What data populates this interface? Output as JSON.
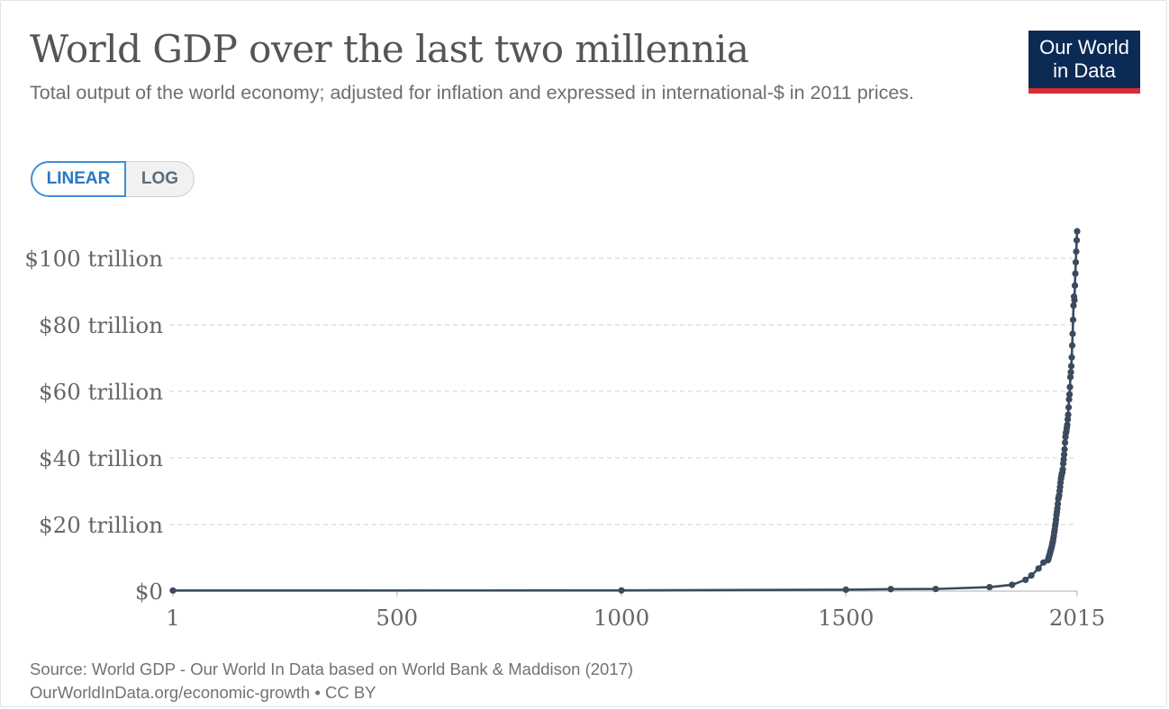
{
  "header": {
    "title": "World GDP over the last two millennia",
    "subtitle": "Total output of the world economy; adjusted for inflation and expressed in international-$ in 2011 prices.",
    "logo_line1": "Our World",
    "logo_line2": "in Data"
  },
  "controls": {
    "linear_label": "LINEAR",
    "log_label": "LOG",
    "selected": "LINEAR"
  },
  "footer": {
    "source": "Source: World GDP - Our World In Data based on World Bank & Maddison (2017)",
    "link": "OurWorldInData.org/economic-growth • CC BY"
  },
  "colors": {
    "line": "#3b4a5e",
    "grid": "#dadada",
    "logo_bg": "#0b2a54",
    "logo_accent": "#d72e34",
    "toggle_active": "#3d8fd6"
  },
  "chart_data": {
    "type": "line",
    "title": "World GDP over the last two millennia",
    "xlabel": "",
    "ylabel": "",
    "xlim": [
      1,
      2015
    ],
    "ylim": [
      0,
      100
    ],
    "y_unit": "trillion international-$ (2011 prices)",
    "scale": "linear",
    "grid": "horizontal dashed",
    "xticks": [
      1,
      500,
      1000,
      1500,
      2015
    ],
    "xtick_labels": [
      "1",
      "500",
      "1000",
      "1500",
      "2015"
    ],
    "yticks": [
      0,
      20,
      40,
      60,
      80,
      100
    ],
    "ytick_labels": [
      "$0",
      "$20 trillion",
      "$40 trillion",
      "$60 trillion",
      "$80 trillion",
      "$100 trillion"
    ],
    "series": [
      {
        "x": [
          1,
          1000,
          1500,
          1600,
          1700,
          1820,
          1870,
          1900,
          1913,
          1929,
          1940,
          1950,
          1951,
          1952,
          1953,
          1954,
          1955,
          1956,
          1957,
          1958,
          1959,
          1960,
          1961,
          1962,
          1963,
          1964,
          1965,
          1966,
          1967,
          1968,
          1969,
          1970,
          1971,
          1972,
          1973,
          1974,
          1975,
          1976,
          1977,
          1978,
          1979,
          1980,
          1981,
          1982,
          1983,
          1984,
          1985,
          1986,
          1987,
          1988,
          1989,
          1990,
          1991,
          1992,
          1993,
          1994,
          1995,
          1996,
          1997,
          1998,
          1999,
          2000,
          2001,
          2002,
          2003,
          2004,
          2005,
          2006,
          2007,
          2008,
          2009,
          2010,
          2011,
          2012,
          2013,
          2014,
          2015
        ],
        "values": [
          0.18,
          0.21,
          0.43,
          0.6,
          0.64,
          1.2,
          1.9,
          3.4,
          4.7,
          6.8,
          8.6,
          9.3,
          9.8,
          10.2,
          10.7,
          11.1,
          11.7,
          12.2,
          12.7,
          13.1,
          13.7,
          14.4,
          15.0,
          15.8,
          16.6,
          17.6,
          18.5,
          19.6,
          20.4,
          21.5,
          22.8,
          23.8,
          24.9,
          26.2,
          27.7,
          28.3,
          28.8,
          30.1,
          31.3,
          32.6,
          33.8,
          34.6,
          35.3,
          35.6,
          36.6,
          38.3,
          39.6,
          41.0,
          42.6,
          44.6,
          46.3,
          47.5,
          48.0,
          49.0,
          50.0,
          51.6,
          53.0,
          55.2,
          57.6,
          59.1,
          61.3,
          64.3,
          65.8,
          67.6,
          70.2,
          73.8,
          77.3,
          81.5,
          85.8,
          88.5,
          87.4,
          91.8,
          95.4,
          98.8,
          102.0,
          105.4,
          108.1
        ]
      }
    ]
  }
}
